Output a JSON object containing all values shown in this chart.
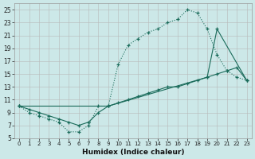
{
  "bg_color": "#cce8e8",
  "grid_color": "#b8b8b8",
  "line_color": "#1a6b5a",
  "xlabel": "Humidex (Indice chaleur)",
  "xlim": [
    -0.5,
    23.5
  ],
  "ylim": [
    5,
    26
  ],
  "yticks": [
    5,
    7,
    9,
    11,
    13,
    15,
    17,
    19,
    21,
    23,
    25
  ],
  "xticks": [
    0,
    1,
    2,
    3,
    4,
    5,
    6,
    7,
    8,
    9,
    10,
    11,
    12,
    13,
    14,
    15,
    16,
    17,
    18,
    19,
    20,
    21,
    22,
    23
  ],
  "line1_x": [
    0,
    1,
    2,
    3,
    4,
    5,
    6,
    7,
    8,
    9,
    10,
    11,
    12,
    13,
    14,
    15,
    16,
    17,
    18,
    19,
    20,
    21,
    22,
    23
  ],
  "line1_y": [
    10,
    9,
    8.5,
    8,
    7.5,
    6,
    6,
    7,
    10,
    10,
    16.5,
    19.5,
    20.5,
    21.5,
    22,
    23,
    23.5,
    25,
    24.5,
    22,
    18,
    15.5,
    14.5,
    14
  ],
  "line2_x": [
    0,
    1,
    2,
    3,
    4,
    5,
    6,
    7,
    8,
    9,
    10,
    11,
    12,
    13,
    14,
    15,
    16,
    17,
    18,
    19,
    20,
    21,
    22,
    23
  ],
  "line2_y": [
    10,
    9.5,
    9,
    8.5,
    8,
    7.5,
    7,
    7.5,
    9,
    10,
    10.5,
    11,
    11.5,
    12,
    12.5,
    13,
    13,
    13.5,
    14,
    14.5,
    15,
    15.5,
    16,
    14
  ],
  "line3_x": [
    0,
    9,
    19,
    20,
    23
  ],
  "line3_y": [
    10,
    10,
    14.5,
    22,
    14
  ]
}
